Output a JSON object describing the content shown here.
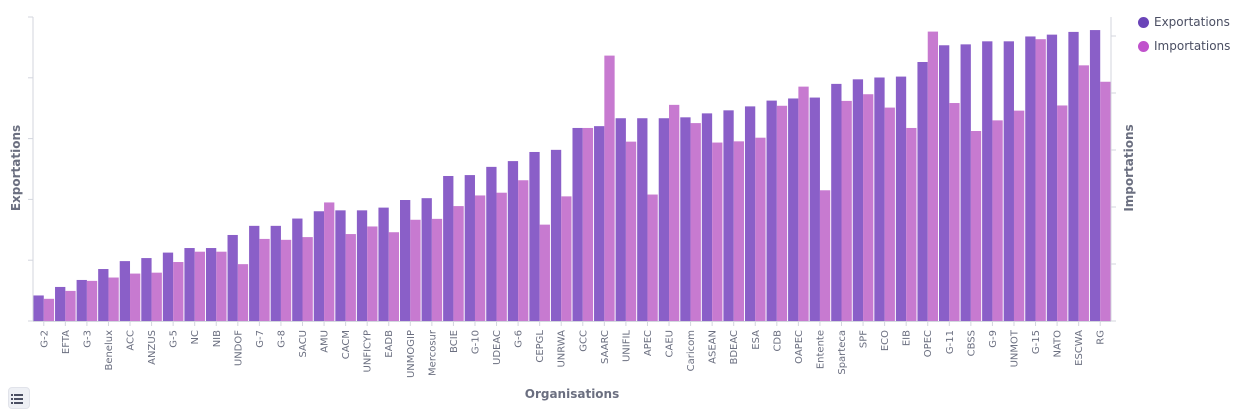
{
  "chart_data": {
    "type": "bar",
    "xlabel": "Organisations",
    "ylabel": "Exportations",
    "ylabel_right": "Importations",
    "ylim": [
      0,
      100
    ],
    "grid": false,
    "legend_position": "top-right",
    "categories": [
      "G-2",
      "EFTA",
      "G-3",
      "Benelux",
      "ACC",
      "ANZUS",
      "G-5",
      "NC",
      "NIB",
      "UNDOF",
      "G-7",
      "G-8",
      "SACU",
      "AMU",
      "CACM",
      "UNFICYP",
      "EADB",
      "UNMOGIP",
      "Mercosur",
      "BCIE",
      "G-10",
      "UDEAC",
      "G-6",
      "CEPGL",
      "UNRWA",
      "GCC",
      "SAARC",
      "UNIFIL",
      "APEC",
      "CAEU",
      "Caricom",
      "ASEAN",
      "BDEAC",
      "ESA",
      "CDB",
      "OAPEC",
      "Entente",
      "Sparteca",
      "SPF",
      "ECO",
      "EIB",
      "OPEC",
      "G-11",
      "CBSS",
      "G-9",
      "UNMOT",
      "G-15",
      "NATO",
      "ESCWA",
      "RG"
    ],
    "series": [
      {
        "name": "Exportations",
        "color": "#8a5fc8",
        "values": [
          8.4,
          11.2,
          13.5,
          17.1,
          19.7,
          20.7,
          22.5,
          24.0,
          24.0,
          28.3,
          31.3,
          31.3,
          33.7,
          36.1,
          36.4,
          36.4,
          37.3,
          39.8,
          40.4,
          47.7,
          48.0,
          50.7,
          52.6,
          55.6,
          56.3,
          63.5,
          64.1,
          66.7,
          66.7,
          66.7,
          67.0,
          68.3,
          69.3,
          70.6,
          72.5,
          73.2,
          73.5,
          78.0,
          79.5,
          80.1,
          80.4,
          85.2,
          90.7,
          91.0,
          92.0,
          92.0,
          93.6,
          94.2,
          95.1,
          95.7
        ]
      },
      {
        "name": "Importations",
        "color": "#c77ad0",
        "values": [
          7.3,
          9.9,
          13.2,
          14.3,
          15.6,
          15.9,
          19.4,
          22.8,
          22.8,
          18.7,
          27.0,
          26.7,
          27.6,
          39.0,
          28.6,
          31.1,
          29.2,
          33.3,
          33.6,
          37.8,
          41.3,
          42.2,
          46.3,
          31.7,
          41.0,
          63.5,
          87.3,
          59.0,
          41.6,
          71.1,
          65.1,
          58.7,
          59.1,
          60.3,
          70.8,
          77.1,
          43.0,
          72.4,
          74.6,
          70.2,
          63.5,
          95.2,
          71.7,
          62.5,
          66.0,
          69.2,
          92.7,
          70.9,
          84.1,
          78.7
        ]
      }
    ]
  }
}
